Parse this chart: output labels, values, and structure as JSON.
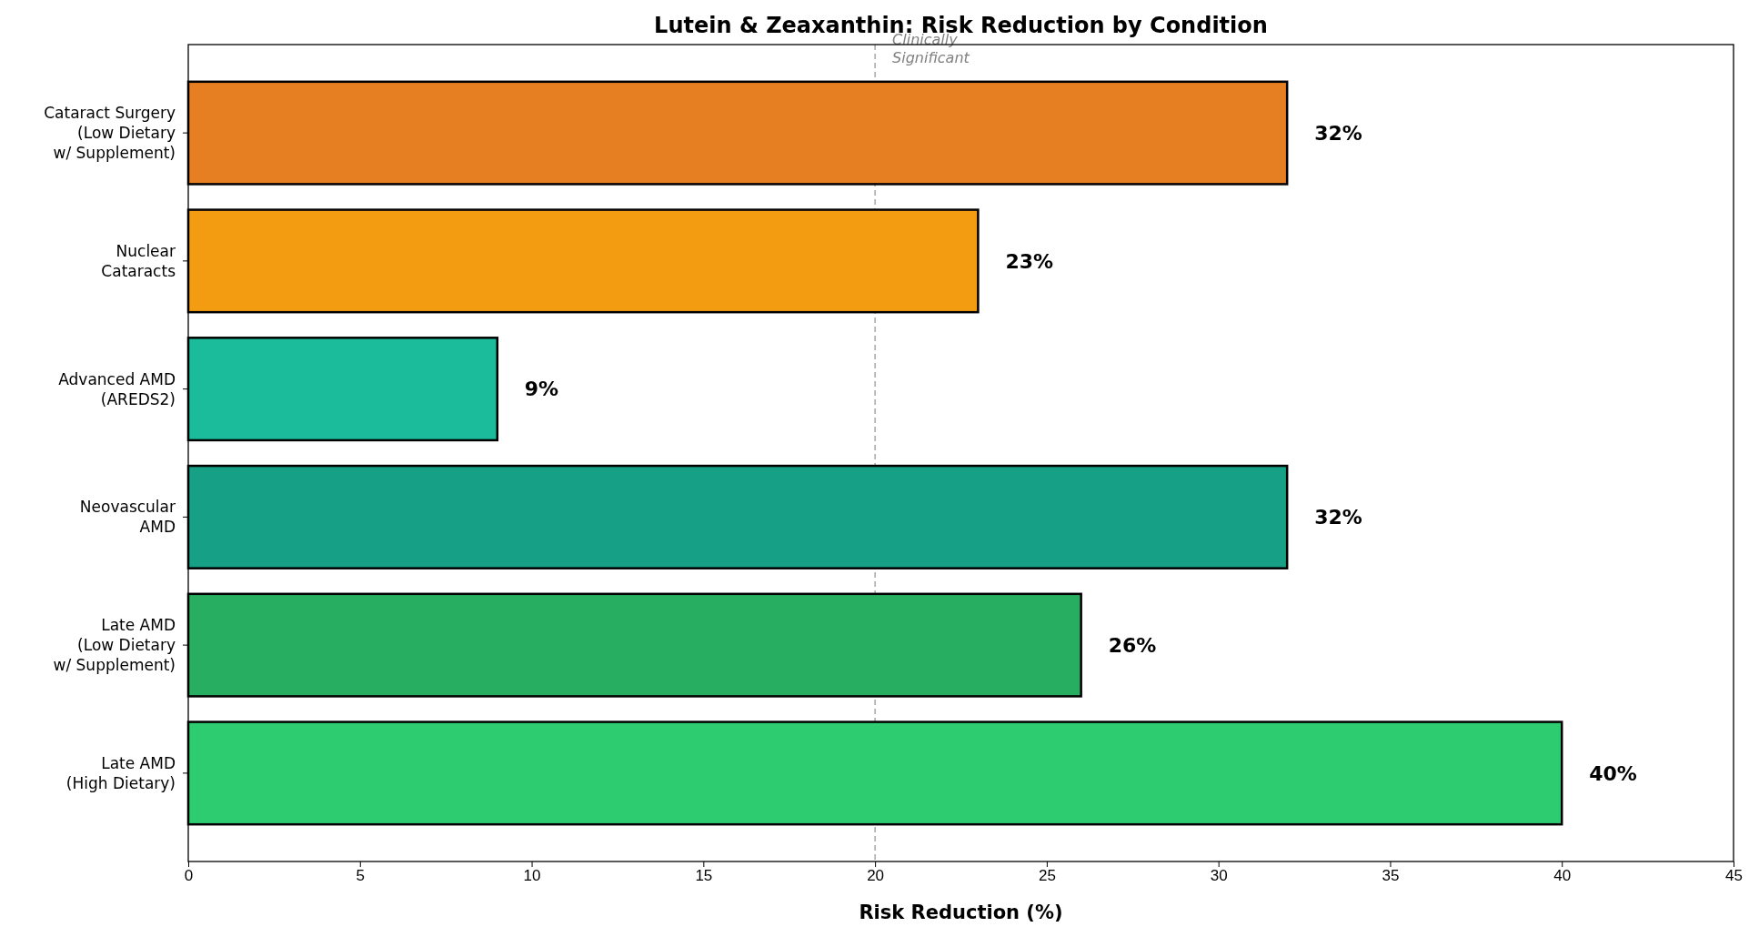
{
  "chart_data": {
    "type": "bar",
    "orientation": "horizontal",
    "title": "Lutein & Zeaxanthin: Risk Reduction by Condition",
    "xlabel": "Risk Reduction (%)",
    "categories": [
      "Cataract Surgery\n(Low Dietary\nw/ Supplement)",
      "Nuclear\nCataracts",
      "Advanced AMD\n(AREDS2)",
      "Neovascular\nAMD",
      "Late AMD\n(Low Dietary\nw/ Supplement)",
      "Late AMD\n(High Dietary)"
    ],
    "values": [
      32,
      23,
      9,
      32,
      26,
      40
    ],
    "colors": [
      "#e67e22",
      "#f39c12",
      "#1abc9c",
      "#16a085",
      "#27ae60",
      "#2ecc71"
    ],
    "value_labels": [
      "32%",
      "23%",
      "9%",
      "32%",
      "26%",
      "40%"
    ],
    "xlim": [
      0,
      45
    ],
    "xticks": [
      0,
      5,
      10,
      15,
      20,
      25,
      30,
      35,
      40,
      45
    ],
    "ref_lines": [
      {
        "axis": "x",
        "value": 20,
        "label": "Clinically\nSignificant",
        "color": "#999999",
        "line_style": "dashed"
      }
    ],
    "grid": false
  }
}
